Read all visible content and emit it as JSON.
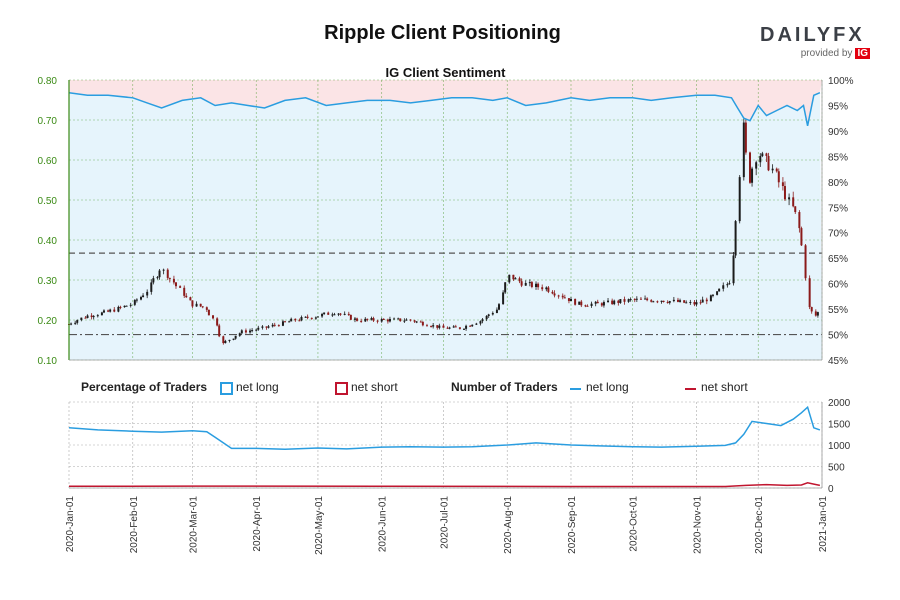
{
  "header": {
    "title": "Ripple Client Positioning",
    "logo_text": "DAILYFX",
    "logo_provided": "provided by",
    "logo_ig": "IG"
  },
  "legend": {
    "pct_title": "Percentage of Traders",
    "pct_long": "net long",
    "pct_short": "net short",
    "num_title": "Number of Traders",
    "num_long": "net long",
    "num_short": "net short"
  },
  "colors": {
    "long": "#2a9de0",
    "short": "#c0152f",
    "long_fill": "#e6f4fc",
    "short_fill": "#fbe4e6",
    "price_axis": "#3a8a14",
    "bull": "#1b1b1b",
    "bear": "#8b1a1a"
  },
  "chart_data": [
    {
      "type": "line",
      "title": "IG Client Sentiment",
      "x_ticks": [
        "2020-Jan-01",
        "2020-Feb-01",
        "2020-Mar-01",
        "2020-Apr-01",
        "2020-May-01",
        "2020-Jun-01",
        "2020-Jul-01",
        "2020-Aug-01",
        "2020-Sep-01",
        "2020-Oct-01",
        "2020-Nov-01",
        "2020-Dec-01",
        "2021-Jan-01"
      ],
      "price_axis": {
        "ticks": [
          "0.10",
          "0.20",
          "0.30",
          "0.40",
          "0.50",
          "0.60",
          "0.70",
          "0.80"
        ],
        "ylim": [
          0.1,
          0.8
        ]
      },
      "sentiment_axis": {
        "ticks": [
          "45%",
          "50%",
          "55%",
          "60%",
          "65%",
          "70%",
          "75%",
          "80%",
          "85%",
          "90%",
          "95%",
          "100%"
        ],
        "ylim": [
          45,
          100
        ]
      },
      "reference_lines": [
        50,
        66
      ],
      "series": [
        {
          "name": "net long",
          "x": [
            "2020-01-01",
            "2020-01-10",
            "2020-01-20",
            "2020-02-01",
            "2020-02-08",
            "2020-02-15",
            "2020-02-25",
            "2020-03-05",
            "2020-03-12",
            "2020-03-20",
            "2020-03-28",
            "2020-04-05",
            "2020-04-15",
            "2020-04-25",
            "2020-05-05",
            "2020-05-15",
            "2020-05-25",
            "2020-06-05",
            "2020-06-15",
            "2020-06-25",
            "2020-07-05",
            "2020-07-15",
            "2020-07-25",
            "2020-08-01",
            "2020-08-10",
            "2020-08-20",
            "2020-09-01",
            "2020-09-10",
            "2020-09-20",
            "2020-10-01",
            "2020-10-10",
            "2020-10-20",
            "2020-11-01",
            "2020-11-10",
            "2020-11-18",
            "2020-11-21",
            "2020-11-24",
            "2020-11-27",
            "2020-12-01",
            "2020-12-05",
            "2020-12-10",
            "2020-12-15",
            "2020-12-20",
            "2020-12-23",
            "2020-12-25",
            "2020-12-28",
            "2020-12-31"
          ],
          "values": [
            97.5,
            97,
            97,
            96.5,
            95.5,
            94.5,
            96,
            96.5,
            95,
            95.5,
            95,
            94.5,
            96,
            96.5,
            95,
            95.5,
            96,
            96,
            95.5,
            96,
            96.5,
            96.5,
            96,
            96.5,
            95,
            95.5,
            96.5,
            96,
            96.5,
            96.5,
            96,
            96.5,
            97,
            97,
            96.5,
            94.5,
            92.5,
            92,
            95,
            93,
            94,
            95,
            94,
            95,
            91,
            97,
            97.5
          ]
        }
      ],
      "price_ohlc_sampled": {
        "x": [
          "2020-01-01",
          "2020-01-10",
          "2020-01-20",
          "2020-02-01",
          "2020-02-08",
          "2020-02-15",
          "2020-02-22",
          "2020-03-01",
          "2020-03-08",
          "2020-03-13",
          "2020-03-16",
          "2020-03-25",
          "2020-04-05",
          "2020-04-20",
          "2020-05-01",
          "2020-05-10",
          "2020-05-20",
          "2020-06-01",
          "2020-06-15",
          "2020-07-01",
          "2020-07-10",
          "2020-07-20",
          "2020-07-28",
          "2020-08-02",
          "2020-08-10",
          "2020-08-20",
          "2020-08-28",
          "2020-09-05",
          "2020-09-15",
          "2020-10-01",
          "2020-10-15",
          "2020-11-01",
          "2020-11-10",
          "2020-11-18",
          "2020-11-21",
          "2020-11-24",
          "2020-11-27",
          "2020-12-01",
          "2020-12-08",
          "2020-12-15",
          "2020-12-20",
          "2020-12-23",
          "2020-12-26",
          "2020-12-29",
          "2020-12-31"
        ],
        "close": [
          0.19,
          0.21,
          0.22,
          0.24,
          0.27,
          0.33,
          0.29,
          0.24,
          0.23,
          0.19,
          0.14,
          0.17,
          0.18,
          0.2,
          0.21,
          0.22,
          0.2,
          0.2,
          0.2,
          0.18,
          0.18,
          0.2,
          0.23,
          0.31,
          0.29,
          0.28,
          0.26,
          0.24,
          0.24,
          0.25,
          0.25,
          0.24,
          0.26,
          0.3,
          0.47,
          0.68,
          0.55,
          0.62,
          0.58,
          0.51,
          0.46,
          0.38,
          0.23,
          0.21,
          0.22
        ]
      }
    },
    {
      "type": "line",
      "x_ticks": [
        "2020-Jan-01",
        "2020-Feb-01",
        "2020-Mar-01",
        "2020-Apr-01",
        "2020-May-01",
        "2020-Jun-01",
        "2020-Jul-01",
        "2020-Aug-01",
        "2020-Sep-01",
        "2020-Oct-01",
        "2020-Nov-01",
        "2020-Dec-01",
        "2021-Jan-01"
      ],
      "y_ticks": [
        "0",
        "500",
        "1000",
        "1500",
        "2000"
      ],
      "ylim": [
        0,
        2000
      ],
      "series": [
        {
          "name": "net long",
          "x": [
            "2020-01-01",
            "2020-01-15",
            "2020-02-01",
            "2020-02-15",
            "2020-03-01",
            "2020-03-08",
            "2020-03-12",
            "2020-03-20",
            "2020-04-01",
            "2020-04-15",
            "2020-05-01",
            "2020-05-15",
            "2020-06-01",
            "2020-06-15",
            "2020-07-01",
            "2020-07-15",
            "2020-08-01",
            "2020-08-15",
            "2020-09-01",
            "2020-09-15",
            "2020-10-01",
            "2020-10-15",
            "2020-11-01",
            "2020-11-15",
            "2020-11-20",
            "2020-11-24",
            "2020-11-28",
            "2020-12-05",
            "2020-12-12",
            "2020-12-18",
            "2020-12-22",
            "2020-12-25",
            "2020-12-28",
            "2020-12-31"
          ],
          "values": [
            1400,
            1350,
            1320,
            1300,
            1330,
            1310,
            1180,
            920,
            920,
            900,
            930,
            910,
            950,
            960,
            950,
            960,
            1000,
            1050,
            1000,
            980,
            960,
            950,
            970,
            990,
            1050,
            1250,
            1550,
            1500,
            1450,
            1600,
            1750,
            1880,
            1400,
            1350
          ]
        },
        {
          "name": "net short",
          "x": [
            "2020-01-01",
            "2020-03-01",
            "2020-06-01",
            "2020-09-01",
            "2020-11-15",
            "2020-11-25",
            "2020-12-05",
            "2020-12-15",
            "2020-12-22",
            "2020-12-25",
            "2020-12-28",
            "2020-12-31"
          ],
          "values": [
            40,
            45,
            40,
            35,
            35,
            60,
            80,
            60,
            70,
            120,
            90,
            60
          ]
        }
      ]
    }
  ]
}
